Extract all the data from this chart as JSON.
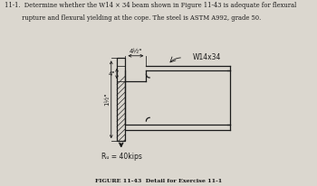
{
  "title_line1": "11-1.  Determine whether the W14 × 34 beam shown in Figure 11-43 is adequate for flexural",
  "title_line2": "         rupture and flexural yielding at the cope. The steel is ASTM A992, grade 50.",
  "figure_caption": "FIGURE 11-43  Detail for Exercise 11-1",
  "reaction_label": "Rᵤ = 40kips",
  "beam_label": "W14x34",
  "dim_top": "4½\"",
  "dim_cope_depth": "4\"",
  "dim_left": "1½\"",
  "bg_color": "#dbd7cf",
  "line_color": "#1a1a1a",
  "text_color": "#1a1a1a"
}
